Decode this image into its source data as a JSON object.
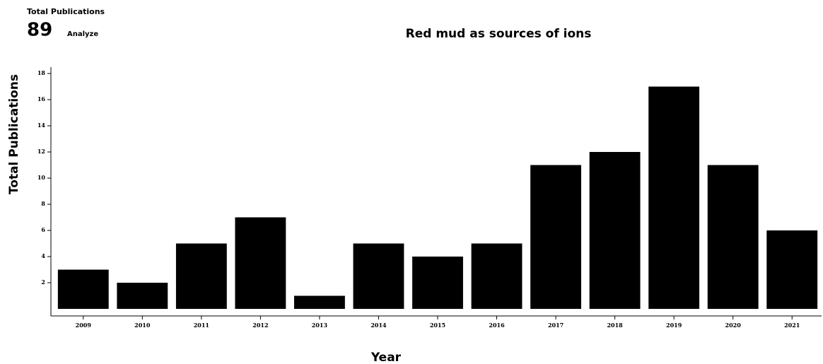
{
  "header": {
    "label": "Total Publications",
    "count": 89,
    "action": "Analyze"
  },
  "chart_data": {
    "type": "bar",
    "title": "Red mud as sources of ions",
    "x_label": "Year",
    "y_label": "Total Publications",
    "categories": [
      "2009",
      "2010",
      "2011",
      "2012",
      "2013",
      "2014",
      "2015",
      "2016",
      "2017",
      "2018",
      "2019",
      "2020",
      "2021"
    ],
    "values": [
      3,
      2,
      5,
      7,
      1,
      5,
      4,
      5,
      11,
      12,
      17,
      11,
      6
    ],
    "color": "#000000",
    "ylim": [
      0,
      18
    ],
    "yticks": [
      2,
      4,
      6,
      8,
      10,
      12,
      14,
      16,
      18
    ],
    "grid": false
  }
}
